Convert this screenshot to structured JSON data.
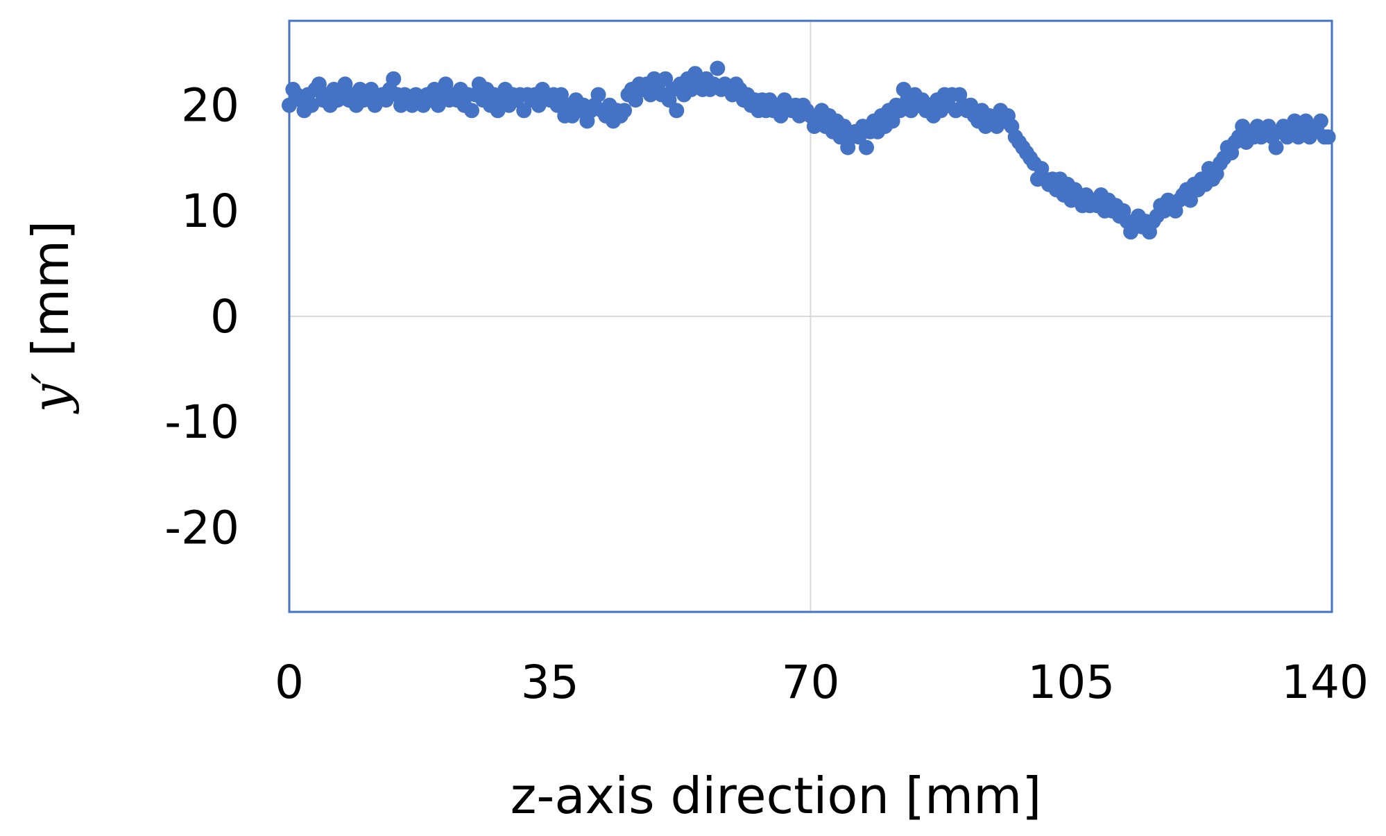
{
  "chart_data": {
    "type": "scatter",
    "xlabel": "z-axis direction [mm]",
    "ylabel_var": "y′",
    "ylabel_unit": " [mm]",
    "xlim": [
      0,
      140
    ],
    "ylim": [
      -28,
      28
    ],
    "x_ticks": [
      0,
      35,
      70,
      105,
      140
    ],
    "x_tick_labels": [
      "0",
      "35",
      "70",
      "105",
      "140"
    ],
    "y_ticks": [
      20,
      10,
      0,
      -10,
      -20
    ],
    "y_tick_labels": [
      "20",
      "10",
      "0",
      "-10",
      "-20"
    ],
    "grid": true,
    "series": [
      {
        "color": "#4472C4",
        "points": [
          [
            0,
            20
          ],
          [
            0.5,
            21.5
          ],
          [
            1,
            21
          ],
          [
            1.5,
            20.5
          ],
          [
            2,
            19.5
          ],
          [
            2.5,
            21
          ],
          [
            3,
            20
          ],
          [
            3.5,
            21.5
          ],
          [
            4,
            22
          ],
          [
            4.5,
            20.5
          ],
          [
            5,
            21
          ],
          [
            5.5,
            20
          ],
          [
            6,
            21.5
          ],
          [
            6.5,
            20.5
          ],
          [
            7,
            21
          ],
          [
            7.5,
            22
          ],
          [
            8,
            20.5
          ],
          [
            8.5,
            21
          ],
          [
            9,
            20
          ],
          [
            9.5,
            21.5
          ],
          [
            10,
            20.5
          ],
          [
            10.5,
            21
          ],
          [
            11,
            21.5
          ],
          [
            11.5,
            20
          ],
          [
            12,
            20.5
          ],
          [
            12.5,
            21
          ],
          [
            13,
            20.5
          ],
          [
            13.5,
            21.5
          ],
          [
            14,
            22.5
          ],
          [
            14.5,
            21
          ],
          [
            15,
            20
          ],
          [
            15.5,
            21
          ],
          [
            16,
            20.5
          ],
          [
            16.5,
            20
          ],
          [
            17,
            21
          ],
          [
            17.5,
            20.5
          ],
          [
            18,
            20
          ],
          [
            18.5,
            21
          ],
          [
            19,
            20.5
          ],
          [
            19.5,
            21.5
          ],
          [
            20,
            20
          ],
          [
            20.5,
            21
          ],
          [
            21,
            22
          ],
          [
            21.5,
            20.5
          ],
          [
            22,
            21
          ],
          [
            22.5,
            20.5
          ],
          [
            23,
            21.5
          ],
          [
            23.5,
            20
          ],
          [
            24,
            21
          ],
          [
            24.5,
            19.5
          ],
          [
            25,
            21
          ],
          [
            25.5,
            22
          ],
          [
            26,
            20.5
          ],
          [
            26.5,
            21.5
          ],
          [
            27,
            20
          ],
          [
            27.5,
            21
          ],
          [
            28,
            19.5
          ],
          [
            28.5,
            20.5
          ],
          [
            29,
            21.5
          ],
          [
            29.5,
            20
          ],
          [
            30,
            21
          ],
          [
            30.5,
            20.5
          ],
          [
            31,
            21
          ],
          [
            31.5,
            19.5
          ],
          [
            32,
            21
          ],
          [
            32.5,
            20.5
          ],
          [
            33,
            21
          ],
          [
            33.5,
            20
          ],
          [
            34,
            21.5
          ],
          [
            34.5,
            21
          ],
          [
            35,
            20.5
          ],
          [
            35.5,
            21
          ],
          [
            36,
            20
          ],
          [
            36.5,
            21
          ],
          [
            37,
            19
          ],
          [
            37.5,
            20
          ],
          [
            38,
            19
          ],
          [
            38.5,
            20.5
          ],
          [
            39,
            19.5
          ],
          [
            39.5,
            20
          ],
          [
            40,
            18.5
          ],
          [
            40.5,
            19.5
          ],
          [
            41,
            20
          ],
          [
            41.5,
            21
          ],
          [
            42,
            19.5
          ],
          [
            42.5,
            19
          ],
          [
            43,
            20
          ],
          [
            43.5,
            18.5
          ],
          [
            44,
            19.5
          ],
          [
            44.5,
            19
          ],
          [
            45,
            19.5
          ],
          [
            45.5,
            21
          ],
          [
            46,
            21.5
          ],
          [
            46.5,
            20.5
          ],
          [
            47,
            22
          ],
          [
            47.5,
            21.5
          ],
          [
            48,
            22
          ],
          [
            48.5,
            21
          ],
          [
            49,
            22.5
          ],
          [
            49.5,
            21.5
          ],
          [
            50,
            21
          ],
          [
            50.5,
            22.5
          ],
          [
            51,
            20.5
          ],
          [
            51.5,
            21.5
          ],
          [
            52,
            19.5
          ],
          [
            52.5,
            22
          ],
          [
            53,
            21
          ],
          [
            53.5,
            22.5
          ],
          [
            54,
            21.5
          ],
          [
            54.5,
            23
          ],
          [
            55,
            22
          ],
          [
            55.5,
            21.5
          ],
          [
            56,
            22.5
          ],
          [
            56.5,
            21.5
          ],
          [
            57,
            22
          ],
          [
            57.5,
            23.5
          ],
          [
            58,
            21.5
          ],
          [
            58.5,
            22
          ],
          [
            59,
            21.5
          ],
          [
            59.5,
            21
          ],
          [
            60,
            22
          ],
          [
            60.5,
            21.5
          ],
          [
            61,
            20.5
          ],
          [
            61.5,
            21
          ],
          [
            62,
            20
          ],
          [
            62.5,
            20.5
          ],
          [
            63,
            19.5
          ],
          [
            63.5,
            20.5
          ],
          [
            64,
            19.5
          ],
          [
            64.5,
            20.5
          ],
          [
            65,
            19.5
          ],
          [
            65.5,
            20
          ],
          [
            66,
            19
          ],
          [
            66.5,
            20.5
          ],
          [
            67,
            20
          ],
          [
            67.5,
            19.5
          ],
          [
            68,
            20
          ],
          [
            68.5,
            19
          ],
          [
            69,
            20
          ],
          [
            69.5,
            19.5
          ],
          [
            70,
            19
          ],
          [
            70.5,
            18
          ],
          [
            71,
            18.5
          ],
          [
            71.5,
            19.5
          ],
          [
            72,
            18
          ],
          [
            72.5,
            19
          ],
          [
            73,
            17.5
          ],
          [
            73.5,
            18.5
          ],
          [
            74,
            17
          ],
          [
            74.5,
            18
          ],
          [
            75,
            16
          ],
          [
            75.5,
            17
          ],
          [
            76,
            17.5
          ],
          [
            76.5,
            17
          ],
          [
            77,
            18
          ],
          [
            77.5,
            16
          ],
          [
            78,
            17.5
          ],
          [
            78.5,
            18.5
          ],
          [
            79,
            17.5
          ],
          [
            79.5,
            19
          ],
          [
            80,
            18
          ],
          [
            80.5,
            19.5
          ],
          [
            81,
            18.5
          ],
          [
            81.5,
            20
          ],
          [
            82,
            19.5
          ],
          [
            82.5,
            21.5
          ],
          [
            83,
            20.5
          ],
          [
            83.5,
            19.5
          ],
          [
            84,
            21
          ],
          [
            84.5,
            20
          ],
          [
            85,
            20.5
          ],
          [
            85.5,
            19.5
          ],
          [
            86,
            20
          ],
          [
            86.5,
            19
          ],
          [
            87,
            20.5
          ],
          [
            87.5,
            19.5
          ],
          [
            88,
            21
          ],
          [
            88.5,
            20
          ],
          [
            89,
            21
          ],
          [
            89.5,
            19.5
          ],
          [
            90,
            21
          ],
          [
            90.5,
            20
          ],
          [
            91,
            19.5
          ],
          [
            91.5,
            20
          ],
          [
            92,
            19
          ],
          [
            92.5,
            18.5
          ],
          [
            93,
            19.5
          ],
          [
            93.5,
            18
          ],
          [
            94,
            19
          ],
          [
            94.5,
            18.5
          ],
          [
            95,
            18
          ],
          [
            95.5,
            19.5
          ],
          [
            96,
            18.5
          ],
          [
            96.5,
            19
          ],
          [
            97,
            18
          ],
          [
            97.5,
            17
          ],
          [
            98,
            16.5
          ],
          [
            98.5,
            16
          ],
          [
            99,
            15.5
          ],
          [
            99.5,
            15
          ],
          [
            100,
            14.5
          ],
          [
            100.5,
            13
          ],
          [
            101,
            14
          ],
          [
            101.5,
            13
          ],
          [
            102,
            12.5
          ],
          [
            102.5,
            13
          ],
          [
            103,
            12
          ],
          [
            103.5,
            13
          ],
          [
            104,
            11.5
          ],
          [
            104.5,
            12.5
          ],
          [
            105,
            11
          ],
          [
            105.5,
            12
          ],
          [
            106,
            11
          ],
          [
            106.5,
            10.5
          ],
          [
            107,
            11.5
          ],
          [
            107.5,
            10.5
          ],
          [
            108,
            11
          ],
          [
            108.5,
            10.5
          ],
          [
            109,
            11.5
          ],
          [
            109.5,
            10
          ],
          [
            110,
            11
          ],
          [
            110.5,
            10
          ],
          [
            111,
            10.5
          ],
          [
            111.5,
            9.5
          ],
          [
            112,
            10
          ],
          [
            112.5,
            9
          ],
          [
            113,
            8
          ],
          [
            113.5,
            9
          ],
          [
            114,
            9.5
          ],
          [
            114.5,
            8.5
          ],
          [
            115,
            9
          ],
          [
            115.5,
            8
          ],
          [
            116,
            9
          ],
          [
            116.5,
            9.5
          ],
          [
            117,
            10.5
          ],
          [
            117.5,
            10
          ],
          [
            118,
            11
          ],
          [
            118.5,
            10.5
          ],
          [
            119,
            10
          ],
          [
            119.5,
            11
          ],
          [
            120,
            11.5
          ],
          [
            120.5,
            12
          ],
          [
            121,
            11
          ],
          [
            121.5,
            12.5
          ],
          [
            122,
            12
          ],
          [
            122.5,
            13
          ],
          [
            123,
            12.5
          ],
          [
            123.5,
            14
          ],
          [
            124,
            13
          ],
          [
            124.5,
            13.5
          ],
          [
            125,
            14.5
          ],
          [
            125.5,
            15
          ],
          [
            126,
            16
          ],
          [
            126.5,
            15.5
          ],
          [
            127,
            16.5
          ],
          [
            127.5,
            17
          ],
          [
            128,
            18
          ],
          [
            128.5,
            16.5
          ],
          [
            129,
            17.5
          ],
          [
            129.5,
            17
          ],
          [
            130,
            18
          ],
          [
            130.5,
            17
          ],
          [
            131,
            17.5
          ],
          [
            131.5,
            18
          ],
          [
            132,
            17
          ],
          [
            132.5,
            16
          ],
          [
            133,
            17.5
          ],
          [
            133.5,
            18
          ],
          [
            134,
            17
          ],
          [
            134.5,
            17.5
          ],
          [
            135,
            18.5
          ],
          [
            135.5,
            17
          ],
          [
            136,
            18
          ],
          [
            136.5,
            18.5
          ],
          [
            137,
            17
          ],
          [
            137.5,
            17.5
          ],
          [
            138,
            18
          ],
          [
            138.5,
            18.5
          ],
          [
            139,
            17
          ],
          [
            139.5,
            17
          ]
        ]
      }
    ]
  }
}
